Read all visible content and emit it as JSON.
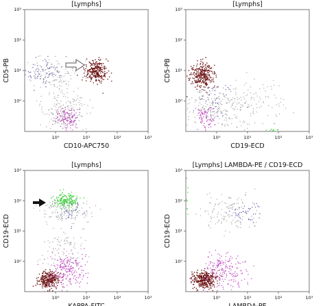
{
  "chart_data": [
    {
      "type": "scatter",
      "title": "[Lymphs]",
      "xlabel": "CD10-APC750",
      "ylabel": "CD5-PB",
      "x_scale": "log",
      "y_scale": "log",
      "xlim": [
        0.1,
        1000
      ],
      "ylim": [
        0.1,
        1000
      ],
      "x_ticks": [
        "10⁰",
        "10¹",
        "10²",
        "10³"
      ],
      "y_ticks": [
        "10⁰",
        "10¹",
        "10²",
        "10³"
      ],
      "grid": false,
      "annotation": "open arrow pointing to the CD5+ CD10+ cluster",
      "colors": {
        "dark_red": "#6a1010",
        "magenta": "#c040c0",
        "blue_purple": "#5a56a8",
        "gray": "#8a8a8a",
        "green": "#27cf25"
      },
      "clusters": [
        {
          "color": "dark_red",
          "x_center": 20,
          "y_center": 9,
          "x_spread": 0.18,
          "y_spread": 0.18,
          "count": 260
        },
        {
          "color": "blue_purple",
          "x_center": 0.4,
          "y_center": 9,
          "x_spread": 0.35,
          "y_spread": 0.2,
          "count": 75
        },
        {
          "color": "gray",
          "x_center": 0.8,
          "y_center": 8,
          "x_spread": 0.45,
          "y_spread": 0.25,
          "count": 120
        },
        {
          "color": "magenta",
          "x_center": 2.5,
          "y_center": 0.28,
          "x_spread": 0.18,
          "y_spread": 0.18,
          "count": 130
        },
        {
          "color": "gray",
          "x_center": 2.0,
          "y_center": 0.5,
          "x_spread": 0.4,
          "y_spread": 0.35,
          "count": 190
        }
      ]
    },
    {
      "type": "scatter",
      "title": "[Lymphs]",
      "xlabel": "CD19-ECD",
      "ylabel": "CD5-PB",
      "x_scale": "log",
      "y_scale": "log",
      "xlim": [
        0.1,
        1000
      ],
      "ylim": [
        0.1,
        1000
      ],
      "x_ticks": [
        "10⁰",
        "10¹",
        "10²",
        "10³"
      ],
      "y_ticks": [
        "10⁰",
        "10¹",
        "10²",
        "10³"
      ],
      "grid": false,
      "colors": {
        "dark_red": "#6a1010",
        "magenta": "#c040c0",
        "blue_purple": "#5a56a8",
        "gray": "#8a8a8a",
        "green": "#27cf25"
      },
      "clusters": [
        {
          "color": "dark_red",
          "x_center": 0.35,
          "y_center": 7,
          "x_spread": 0.18,
          "y_spread": 0.2,
          "count": 290
        },
        {
          "color": "magenta",
          "x_center": 0.45,
          "y_center": 0.3,
          "x_spread": 0.16,
          "y_spread": 0.2,
          "count": 80
        },
        {
          "color": "gray",
          "x_center": 1.0,
          "y_center": 0.6,
          "x_spread": 0.55,
          "y_spread": 0.35,
          "count": 230
        },
        {
          "color": "gray",
          "x_center": 20,
          "y_center": 1.0,
          "x_spread": 0.5,
          "y_spread": 0.45,
          "count": 90
        },
        {
          "color": "blue_purple",
          "x_center": 0.8,
          "y_center": 1.5,
          "x_spread": 0.35,
          "y_spread": 0.35,
          "count": 45
        },
        {
          "color": "green",
          "x_center": 60,
          "y_center": 0.11,
          "x_spread": 0.12,
          "y_spread": 0.02,
          "count": 10
        }
      ]
    },
    {
      "type": "scatter",
      "title": "[Lymphs]",
      "xlabel": "KAPPA-FITC",
      "ylabel": "CD19-ECD",
      "x_scale": "log",
      "y_scale": "log",
      "xlim": [
        0.1,
        1000
      ],
      "ylim": [
        0.1,
        1000
      ],
      "x_ticks": [
        "10⁰",
        "10¹",
        "10²",
        "10³"
      ],
      "y_ticks": [
        "10⁰",
        "10¹",
        "10²",
        "10³"
      ],
      "grid": false,
      "annotation": "solid arrow pointing to the green kappa-positive CD19+ cluster",
      "colors": {
        "dark_red": "#6a1010",
        "magenta": "#c040c0",
        "blue_purple": "#5a56a8",
        "gray": "#8a8a8a",
        "green": "#27cf25"
      },
      "clusters": [
        {
          "color": "green",
          "x_center": 2.2,
          "y_center": 100,
          "x_spread": 0.2,
          "y_spread": 0.12,
          "count": 170
        },
        {
          "color": "gray",
          "x_center": 2.0,
          "y_center": 45,
          "x_spread": 0.4,
          "y_spread": 0.22,
          "count": 140
        },
        {
          "color": "blue_purple",
          "x_center": 3.5,
          "y_center": 40,
          "x_spread": 0.2,
          "y_spread": 0.2,
          "count": 35
        },
        {
          "color": "dark_red",
          "x_center": 0.6,
          "y_center": 0.25,
          "x_spread": 0.18,
          "y_spread": 0.15,
          "count": 290
        },
        {
          "color": "magenta",
          "x_center": 2.5,
          "y_center": 0.5,
          "x_spread": 0.3,
          "y_spread": 0.28,
          "count": 210
        },
        {
          "color": "gray",
          "x_center": 2.0,
          "y_center": 2.5,
          "x_spread": 0.35,
          "y_spread": 0.35,
          "count": 100
        }
      ]
    },
    {
      "type": "scatter",
      "title": "[Lymphs] LAMBDA-PE / CD19-ECD",
      "xlabel": "LAMBDA-PE",
      "ylabel": "CD19-ECD",
      "x_scale": "log",
      "y_scale": "log",
      "xlim": [
        0.1,
        1000
      ],
      "ylim": [
        0.1,
        1000
      ],
      "x_ticks": [
        "10⁰",
        "10¹",
        "10²",
        "10³"
      ],
      "y_ticks": [
        "10⁰",
        "10¹",
        "10²",
        "10³"
      ],
      "grid": false,
      "colors": {
        "dark_red": "#6a1010",
        "magenta": "#c040c0",
        "blue_purple": "#5a56a8",
        "gray": "#8a8a8a",
        "green": "#27cf25"
      },
      "clusters": [
        {
          "color": "dark_red",
          "x_center": 0.4,
          "y_center": 0.25,
          "x_spread": 0.2,
          "y_spread": 0.15,
          "count": 310
        },
        {
          "color": "magenta",
          "x_center": 2.0,
          "y_center": 0.5,
          "x_spread": 0.35,
          "y_spread": 0.3,
          "count": 200
        },
        {
          "color": "gray",
          "x_center": 2.0,
          "y_center": 40,
          "x_spread": 0.45,
          "y_spread": 0.3,
          "count": 120
        },
        {
          "color": "blue_purple",
          "x_center": 8,
          "y_center": 40,
          "x_spread": 0.25,
          "y_spread": 0.2,
          "count": 45
        },
        {
          "color": "green",
          "x_center": 0.11,
          "y_center": 100,
          "x_spread": 0.02,
          "y_spread": 0.35,
          "count": 10
        }
      ]
    }
  ]
}
